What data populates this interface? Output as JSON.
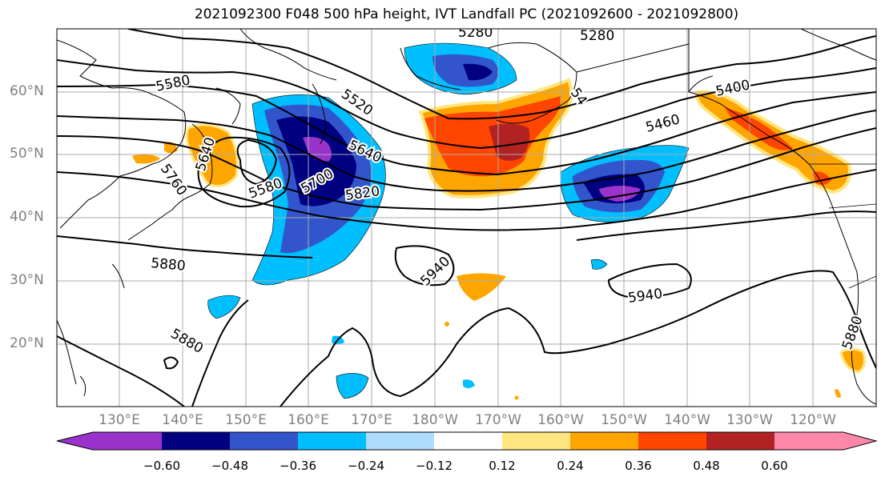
{
  "title": "2021092300 F048 500 hPa height, IVT Landfall PC (2021092600 - 2021092800)",
  "latitude_labels": [
    "60°N",
    "50°N",
    "40°N",
    "30°N",
    "20°N"
  ],
  "longitude_labels": [
    "130°E",
    "140°E",
    "150°E",
    "160°E",
    "170°E",
    "180°W",
    "170°W",
    "160°W",
    "150°W",
    "140°W",
    "130°W",
    "120°W"
  ],
  "contour_labels": [
    "5280",
    "5280",
    "5580",
    "5520",
    "5400",
    "5460",
    "5640",
    "5640",
    "5760",
    "5580",
    "5700",
    "5820",
    "5880",
    "5940",
    "5940",
    "5880",
    "5880",
    "54"
  ],
  "colorbar": {
    "ticks": [
      "−0.60",
      "−0.48",
      "−0.36",
      "−0.24",
      "−0.12",
      "0.12",
      "0.24",
      "0.36",
      "0.48",
      "0.60"
    ],
    "colors": [
      "#9933cc",
      "#000080",
      "#3355cc",
      "#00bfff",
      "#aeddff",
      "#ffffff",
      "#ffe680",
      "#ffa500",
      "#ff4500",
      "#b22222",
      "#ff88aa"
    ]
  }
}
